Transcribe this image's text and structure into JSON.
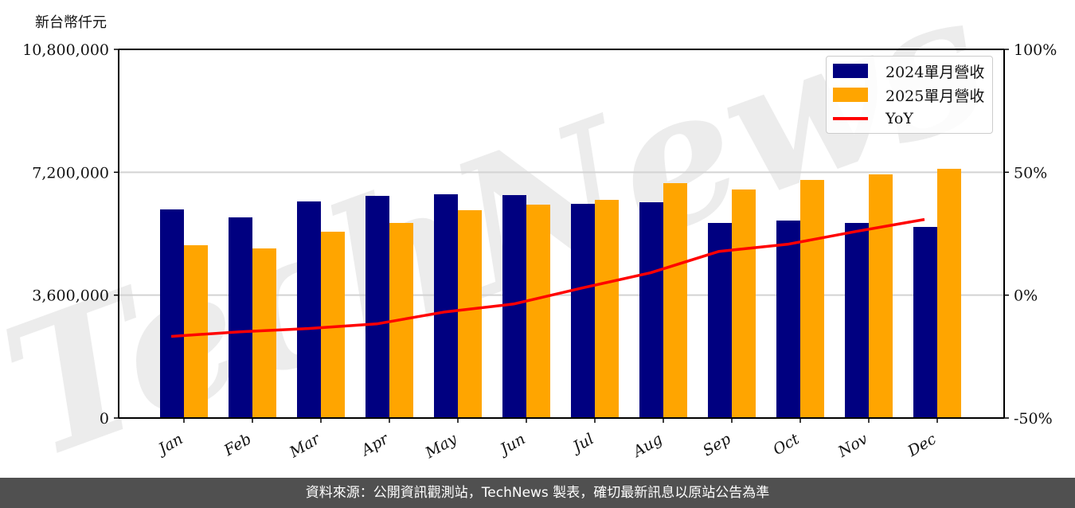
{
  "chart_data": {
    "type": "bar",
    "title": "",
    "xlabel": "",
    "ylabel": "新台幣仟元",
    "y2label": "",
    "ylim": [
      0,
      10800000
    ],
    "y2lim": [
      -50,
      100
    ],
    "yticks": [
      "0",
      "3,600,000",
      "7,200,000",
      "10,800,000"
    ],
    "y2ticks": [
      "-50%",
      "0%",
      "50%",
      "100%"
    ],
    "grid": true,
    "legend_position": "upper right",
    "categories": [
      "Jan",
      "Feb",
      "Mar",
      "Apr",
      "May",
      "Jun",
      "Jul",
      "Aug",
      "Sep",
      "Oct",
      "Nov",
      "Dec"
    ],
    "series": [
      {
        "name": "2024單月營收",
        "type": "bar",
        "color": "#000080",
        "values": [
          6111000,
          5878000,
          6345000,
          6508000,
          6555000,
          6531000,
          6275000,
          6321000,
          5715000,
          5785000,
          5715000,
          5598000
        ]
      },
      {
        "name": "2025單月營收",
        "type": "bar",
        "color": "#FFA500",
        "values": [
          5062000,
          4968000,
          5458000,
          5715000,
          6088000,
          6251000,
          6391000,
          6881000,
          6695000,
          6975000,
          7138000,
          7301000
        ]
      },
      {
        "name": "YoY",
        "type": "line",
        "axis": "right",
        "color": "#FF0000",
        "unit": "%",
        "values": [
          -16.8,
          -14.9,
          -13.6,
          -11.7,
          -6.8,
          -3.6,
          2.9,
          9.1,
          17.8,
          20.7,
          25.9,
          30.8
        ]
      }
    ],
    "watermark": "TechNews"
  },
  "unit_label": "新台幣仟元",
  "legend": {
    "items": [
      {
        "label": "2024單月營收",
        "color": "#000080"
      },
      {
        "label": "2025單月營收",
        "color": "#FFA500"
      },
      {
        "label": "YoY",
        "color": "#FF0000"
      }
    ]
  },
  "footer": {
    "text": "資料來源：公開資訊觀測站，TechNews 製表，確切最新訊息以原站公告為準"
  }
}
